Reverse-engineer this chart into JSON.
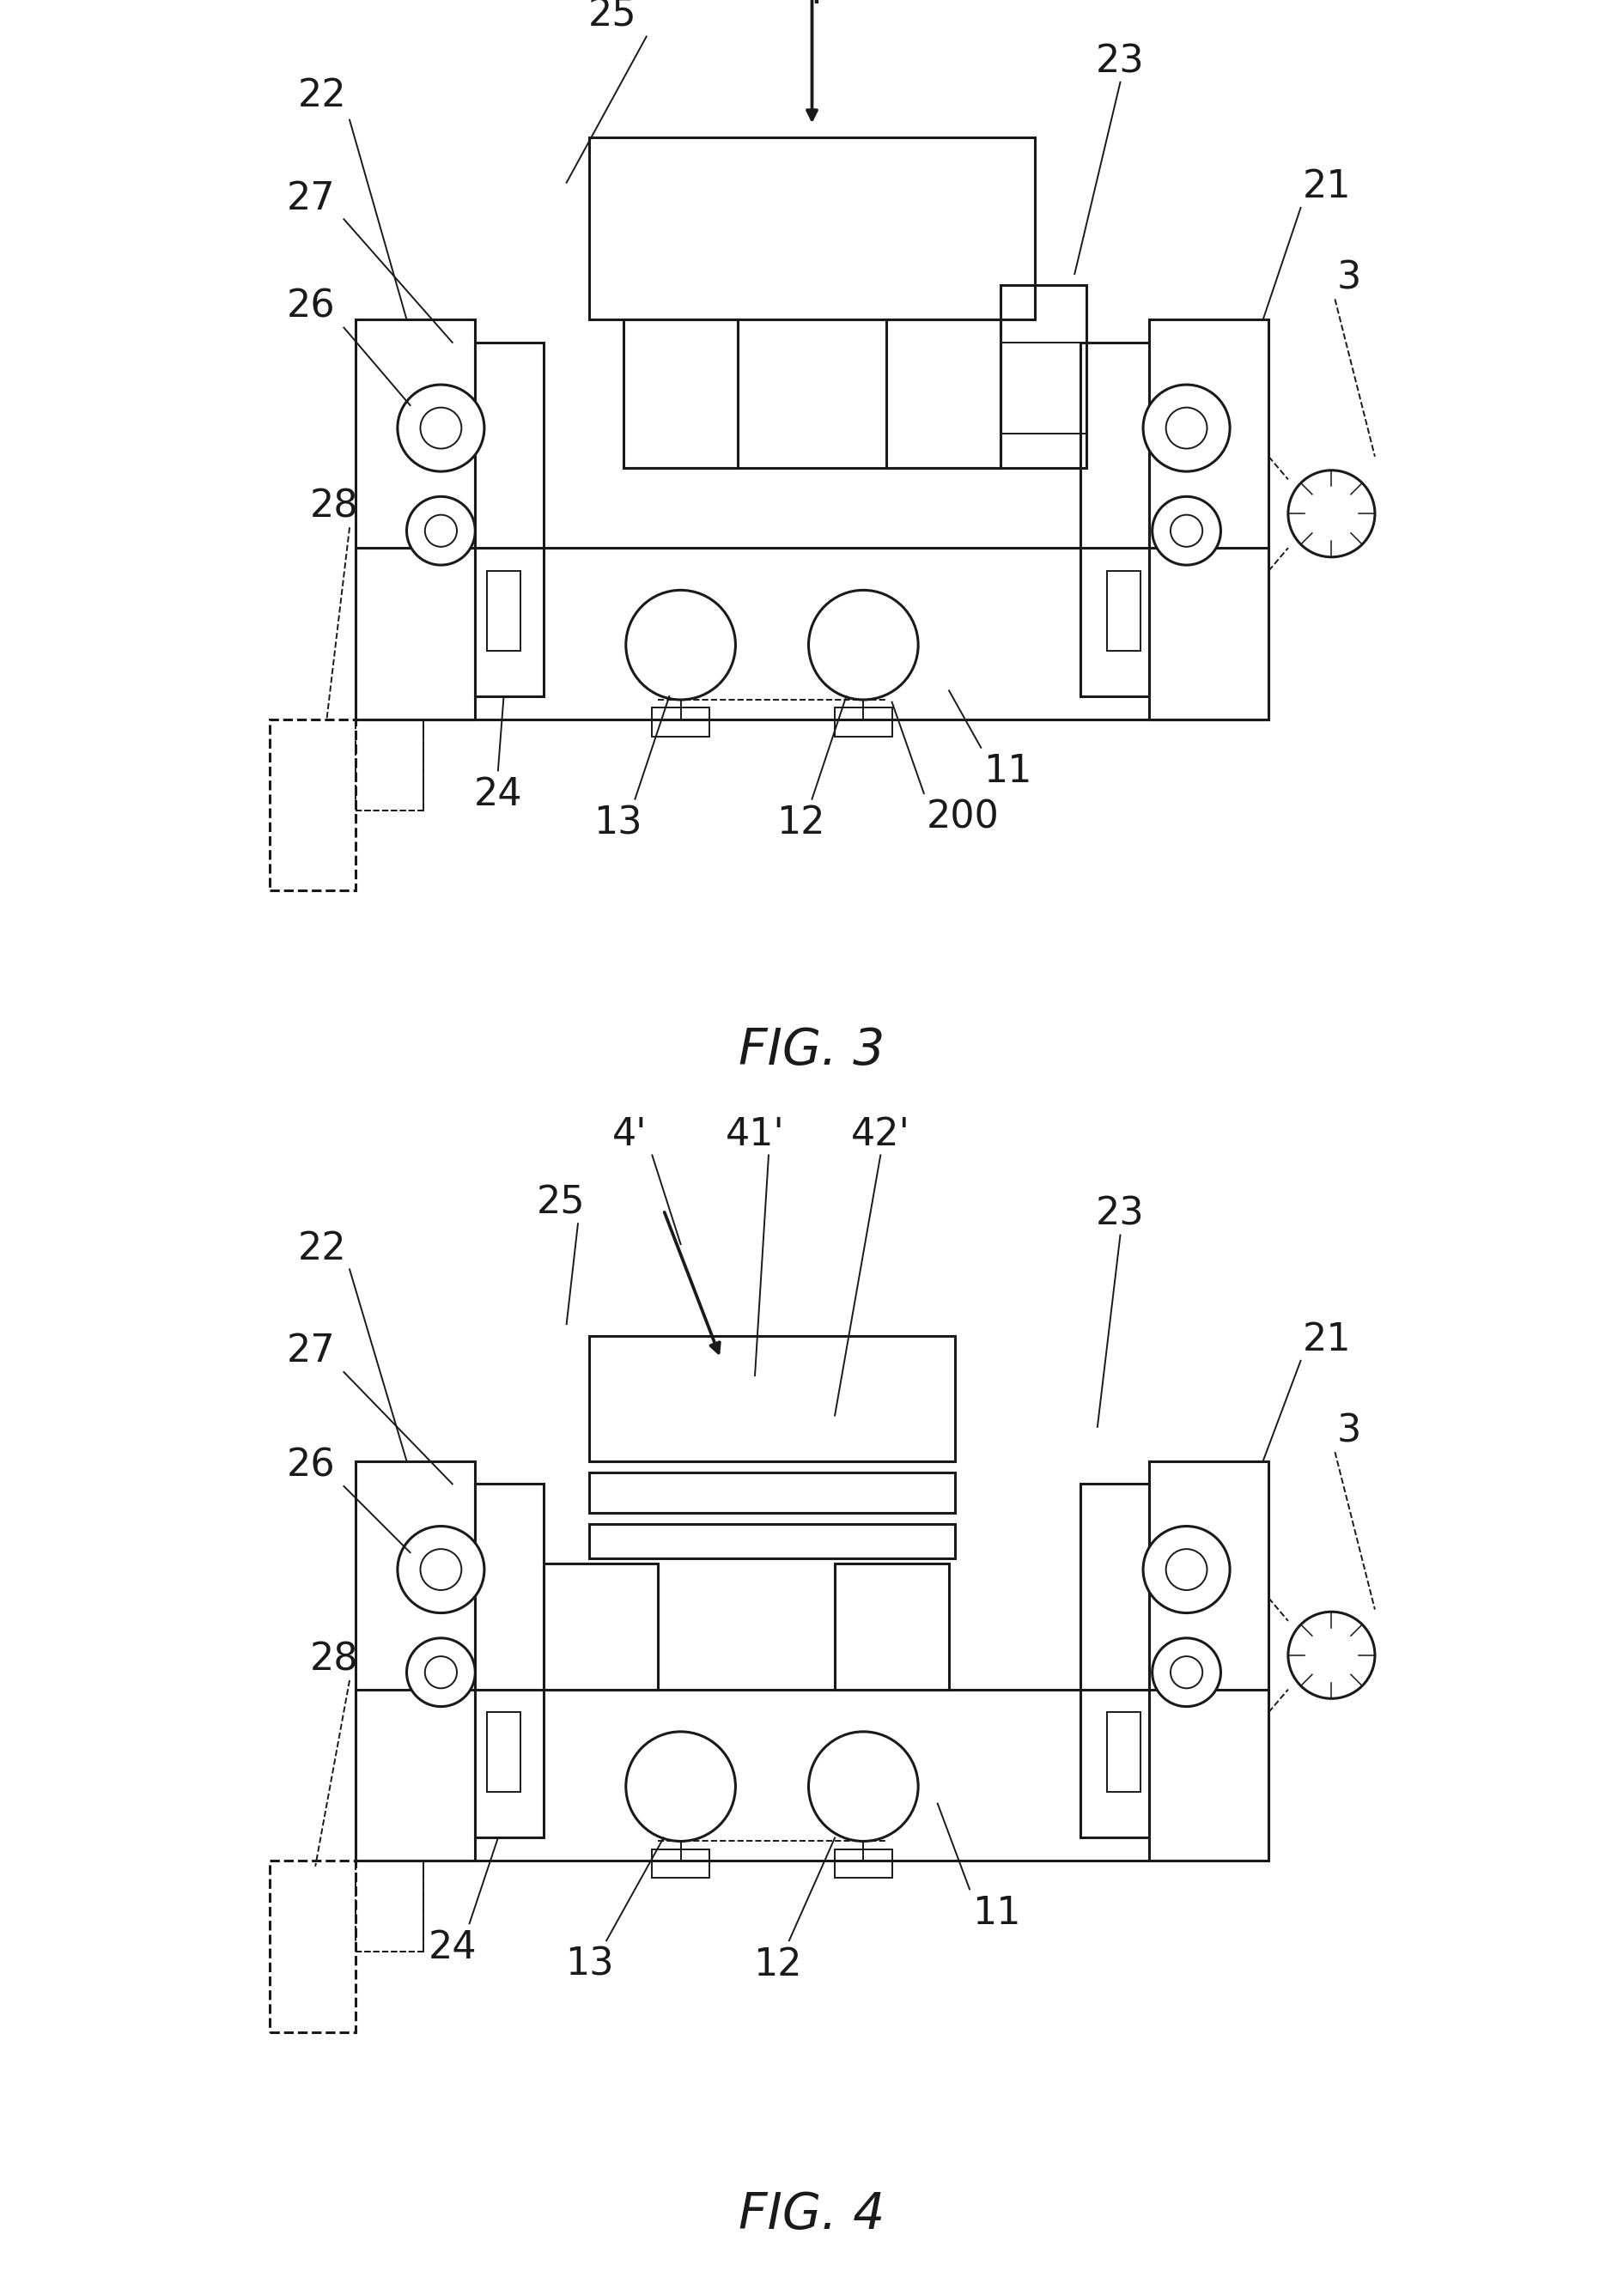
{
  "bg_color": "#ffffff",
  "line_color": "#1a1a1a",
  "fig3_title": "FIG. 3",
  "fig4_title": "FIG. 4",
  "title_fontsize": 42,
  "label_fontsize": 32
}
